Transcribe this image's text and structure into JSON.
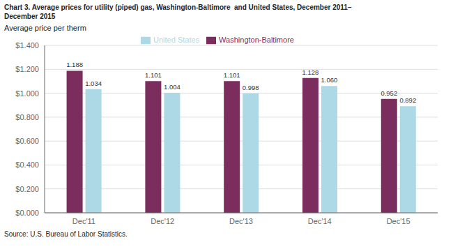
{
  "chart_data": {
    "type": "bar",
    "title": "Chart 3. Average prices for utility (piped) gas, Washington-Baltimore  and United States, December 2011–\nDecember 2015",
    "ylabel": "Average price per therm",
    "source": "Source: U.S. Bureau of Labor Statistics.",
    "categories": [
      "Dec'11",
      "Dec'12",
      "Dec'13",
      "Dec'14",
      "Dec'15"
    ],
    "series": [
      {
        "name": "Washington-Baltimore",
        "color": "#7B2D5E",
        "values": [
          1.188,
          1.101,
          1.101,
          1.128,
          0.952
        ],
        "value_labels": [
          "1.188",
          "1.101",
          "1.101",
          "1.128",
          "0.952"
        ]
      },
      {
        "name": "United States",
        "color": "#ADD8E6",
        "values": [
          1.034,
          1.004,
          0.998,
          1.06,
          0.892
        ],
        "value_labels": [
          "1.034",
          "1.004",
          "0.998",
          "1.060",
          "0.892"
        ]
      }
    ],
    "ylim": [
      0,
      1.4
    ],
    "yticks": [
      {
        "value": 0,
        "label": "$0.000"
      },
      {
        "value": 0.2,
        "label": "$0.200"
      },
      {
        "value": 0.4,
        "label": "$0.400"
      },
      {
        "value": 0.6,
        "label": "$0.600"
      },
      {
        "value": 0.8,
        "label": "$0.800"
      },
      {
        "value": 1.0,
        "label": "$1.000"
      },
      {
        "value": 1.2,
        "label": "$1.200"
      },
      {
        "value": 1.4,
        "label": "$1.400"
      }
    ],
    "grid": true,
    "legend": "top",
    "data_labels": true
  }
}
